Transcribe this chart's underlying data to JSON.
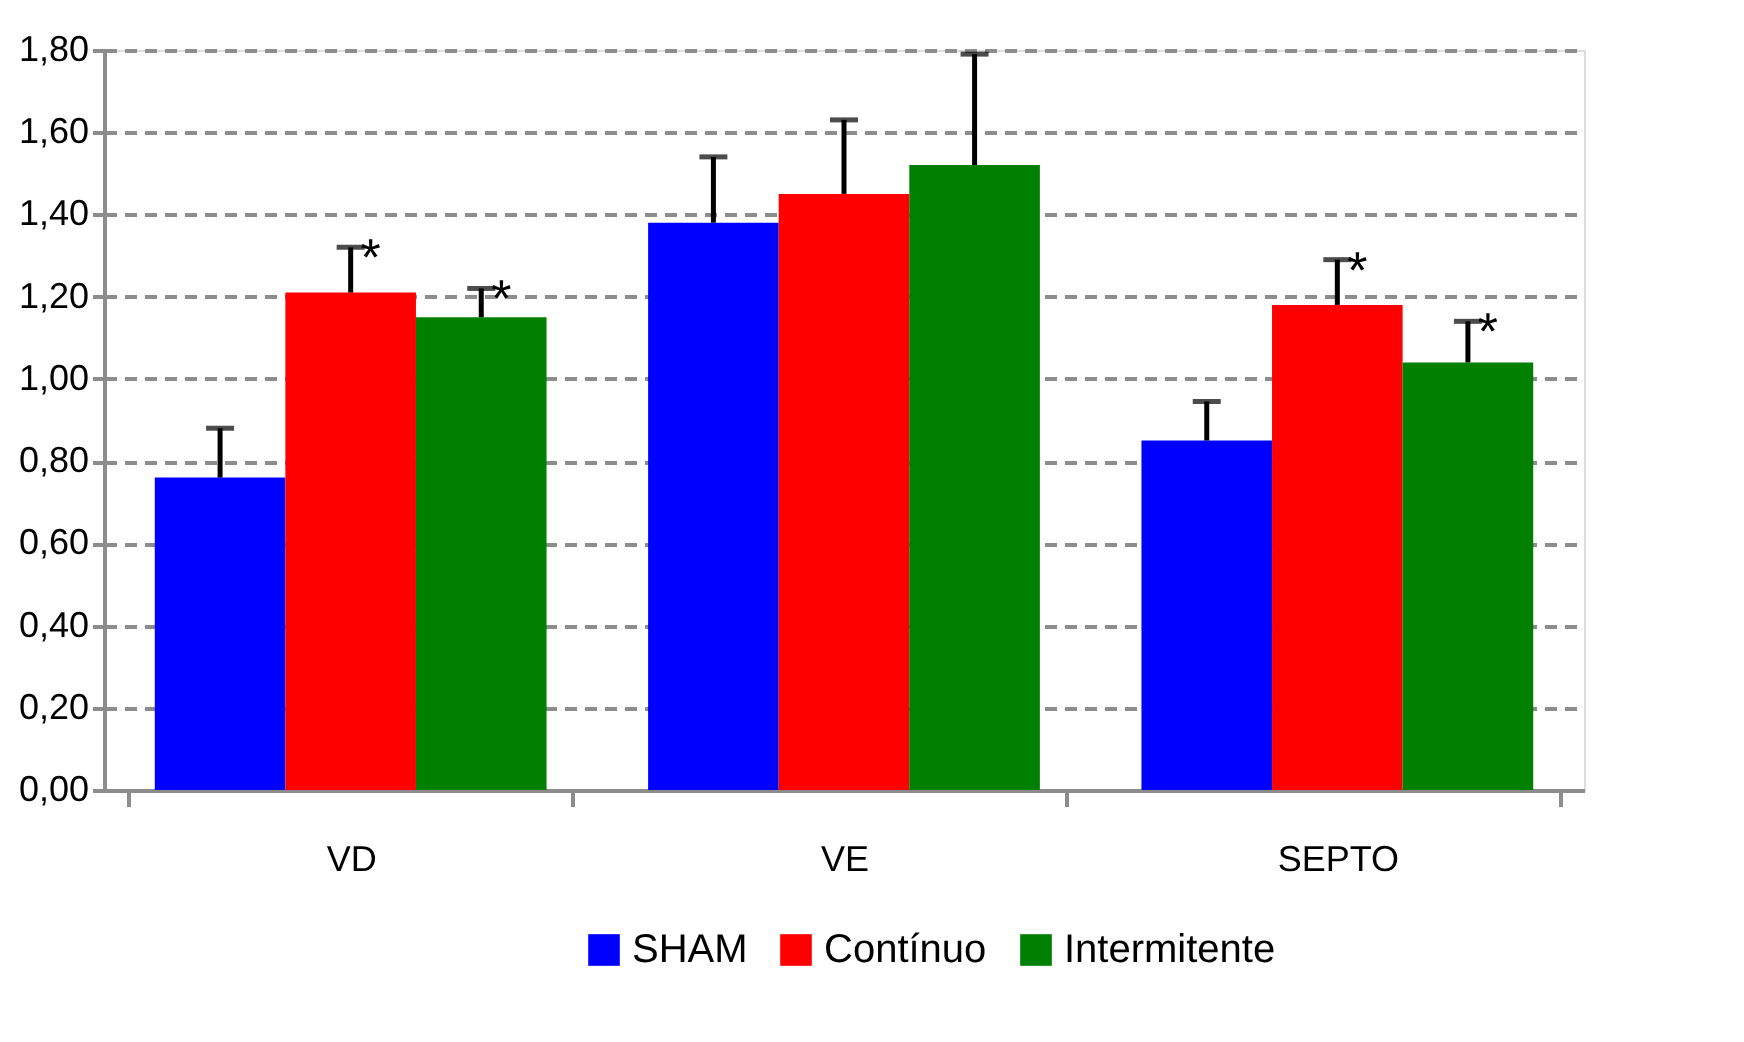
{
  "chart_data": {
    "type": "bar",
    "categories": [
      "VD",
      "VE",
      "SEPTO"
    ],
    "series": [
      {
        "name": "SHAM",
        "color": "#0000ff",
        "values": [
          0.76,
          1.38,
          0.85
        ],
        "errors": [
          [
            0.76,
            0.88
          ],
          [
            1.38,
            1.54
          ],
          [
            0.85,
            0.945
          ]
        ]
      },
      {
        "name": "Contínuo",
        "color": "#ff0000",
        "values": [
          1.21,
          1.45,
          1.18
        ],
        "errors": [
          [
            1.21,
            1.32
          ],
          [
            1.45,
            1.63
          ],
          [
            1.18,
            1.29
          ]
        ],
        "value_labels": [
          "*",
          null,
          "*"
        ]
      },
      {
        "name": "Intermitente",
        "color": "#008000",
        "values": [
          1.15,
          1.52,
          1.04
        ],
        "errors": [
          [
            1.15,
            1.22
          ],
          [
            1.52,
            1.79
          ],
          [
            1.04,
            1.14
          ]
        ],
        "value_labels": [
          "*",
          null,
          "*"
        ]
      }
    ],
    "ylim": [
      0,
      1.8
    ],
    "yticks": [
      {
        "value": 0,
        "label": "0,00"
      },
      {
        "value": 0.2,
        "label": "0,20"
      },
      {
        "value": 0.4,
        "label": "0,40"
      },
      {
        "value": 0.6,
        "label": "0,60"
      },
      {
        "value": 0.8,
        "label": "0,80"
      },
      {
        "value": 1.0,
        "label": "1,00"
      },
      {
        "value": 1.2,
        "label": "1,20"
      },
      {
        "value": 1.4,
        "label": "1,40"
      },
      {
        "value": 1.6,
        "label": "1,60"
      },
      {
        "value": 1.8,
        "label": "1,80"
      }
    ],
    "grid": "y",
    "legend": "bottom"
  }
}
